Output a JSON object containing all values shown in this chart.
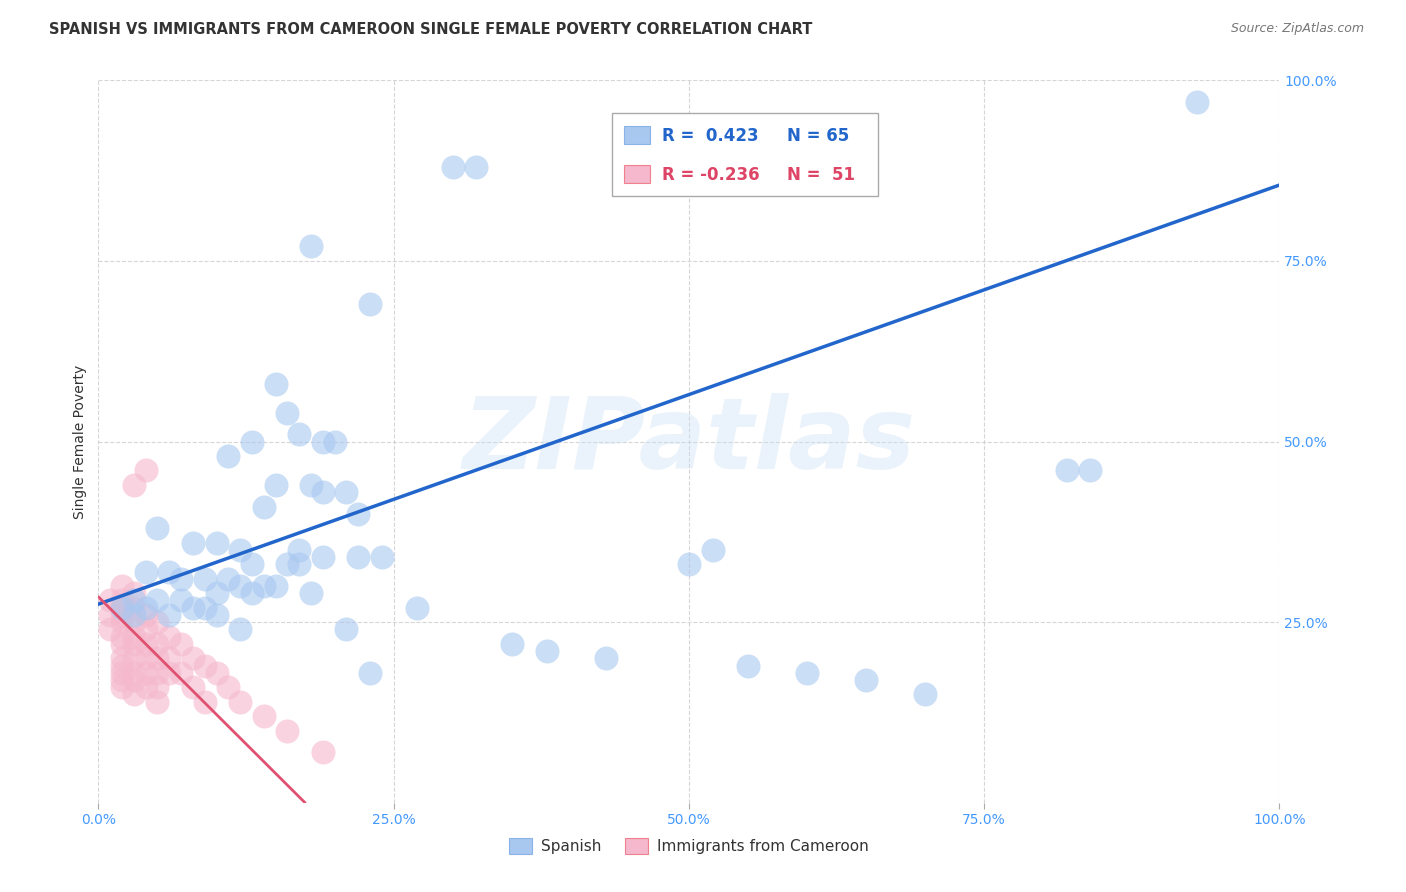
{
  "title": "SPANISH VS IMMIGRANTS FROM CAMEROON SINGLE FEMALE POVERTY CORRELATION CHART",
  "source": "Source: ZipAtlas.com",
  "ylabel": "Single Female Poverty",
  "xlim": [
    0.0,
    1.0
  ],
  "ylim": [
    0.0,
    1.0
  ],
  "xticks": [
    0.0,
    0.25,
    0.5,
    0.75,
    1.0
  ],
  "xtick_labels": [
    "0.0%",
    "25.0%",
    "50.0%",
    "75.0%",
    "100.0%"
  ],
  "yticks": [
    0.25,
    0.5,
    0.75,
    1.0
  ],
  "ytick_labels": [
    "25.0%",
    "50.0%",
    "75.0%",
    "100.0%"
  ],
  "spanish_color": "#a8c8f0",
  "cameroon_color": "#f5b8cc",
  "blue_line_color": "#2266cc",
  "pink_line_color": "#e05070",
  "spanish_R": 0.423,
  "spanish_N": 65,
  "cameroon_R": -0.236,
  "cameroon_N": 51,
  "watermark_text": "ZIPatlas",
  "legend_spanish_label": "Spanish",
  "legend_cameroon_label": "Immigrants from Cameroon",
  "title_fontsize": 10.5,
  "axis_label_fontsize": 10,
  "tick_fontsize": 10,
  "tick_color": "#4499ff",
  "sp_seed": 12,
  "cm_seed": 99,
  "blue_line_y0": 0.275,
  "blue_line_y1": 0.855,
  "pink_line_x0": 0.0,
  "pink_line_x1": 0.175,
  "pink_line_y0": 0.285,
  "pink_line_y1": 0.0
}
